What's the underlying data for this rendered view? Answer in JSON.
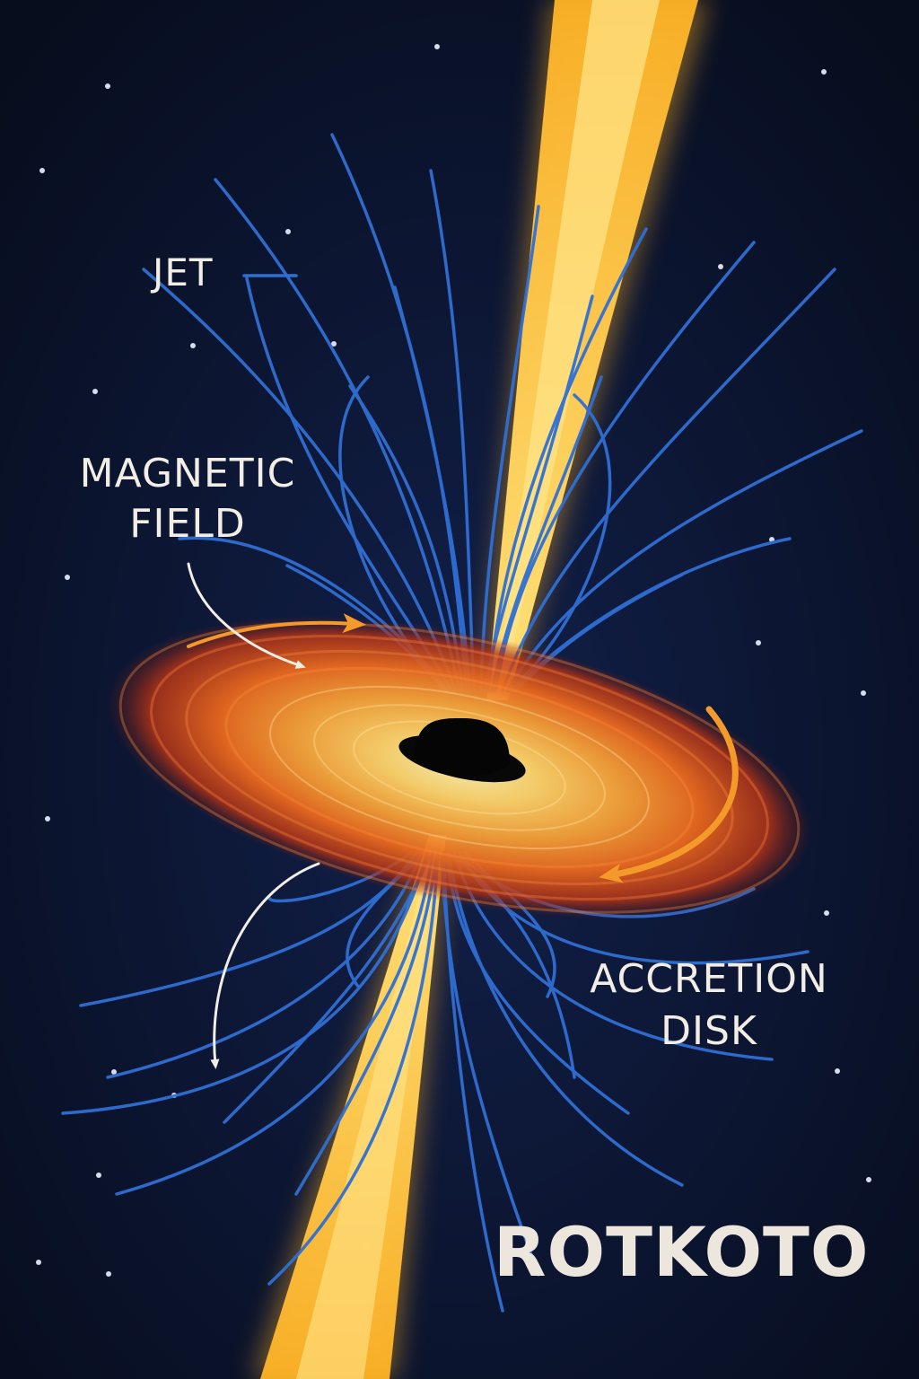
{
  "labels": {
    "jet": "JET",
    "magnetic_field_line1": "MAGNETIC",
    "magnetic_field_line2": "FIELD",
    "accretion_disk_line1": "ACCRETION",
    "accretion_disk_line2": "DISK"
  },
  "brand": "ROTKOTO",
  "colors": {
    "background": "#0a1226",
    "jet": "#ffc53a",
    "field_lines": "#2f6fd4",
    "disk_outer": "#c8401a",
    "disk_mid": "#f08a1e",
    "disk_inner": "#ffd46a",
    "rotation_arrow": "#f39a2a",
    "label_text": "#f2eee6",
    "pointer_arrow": "#f2eee6"
  },
  "icons": {
    "black_hole": "black-hole-icon",
    "rotation_arrow": "rotation-arrow-icon",
    "pointer_arrow": "pointer-arrow-icon",
    "star": "star-icon"
  }
}
